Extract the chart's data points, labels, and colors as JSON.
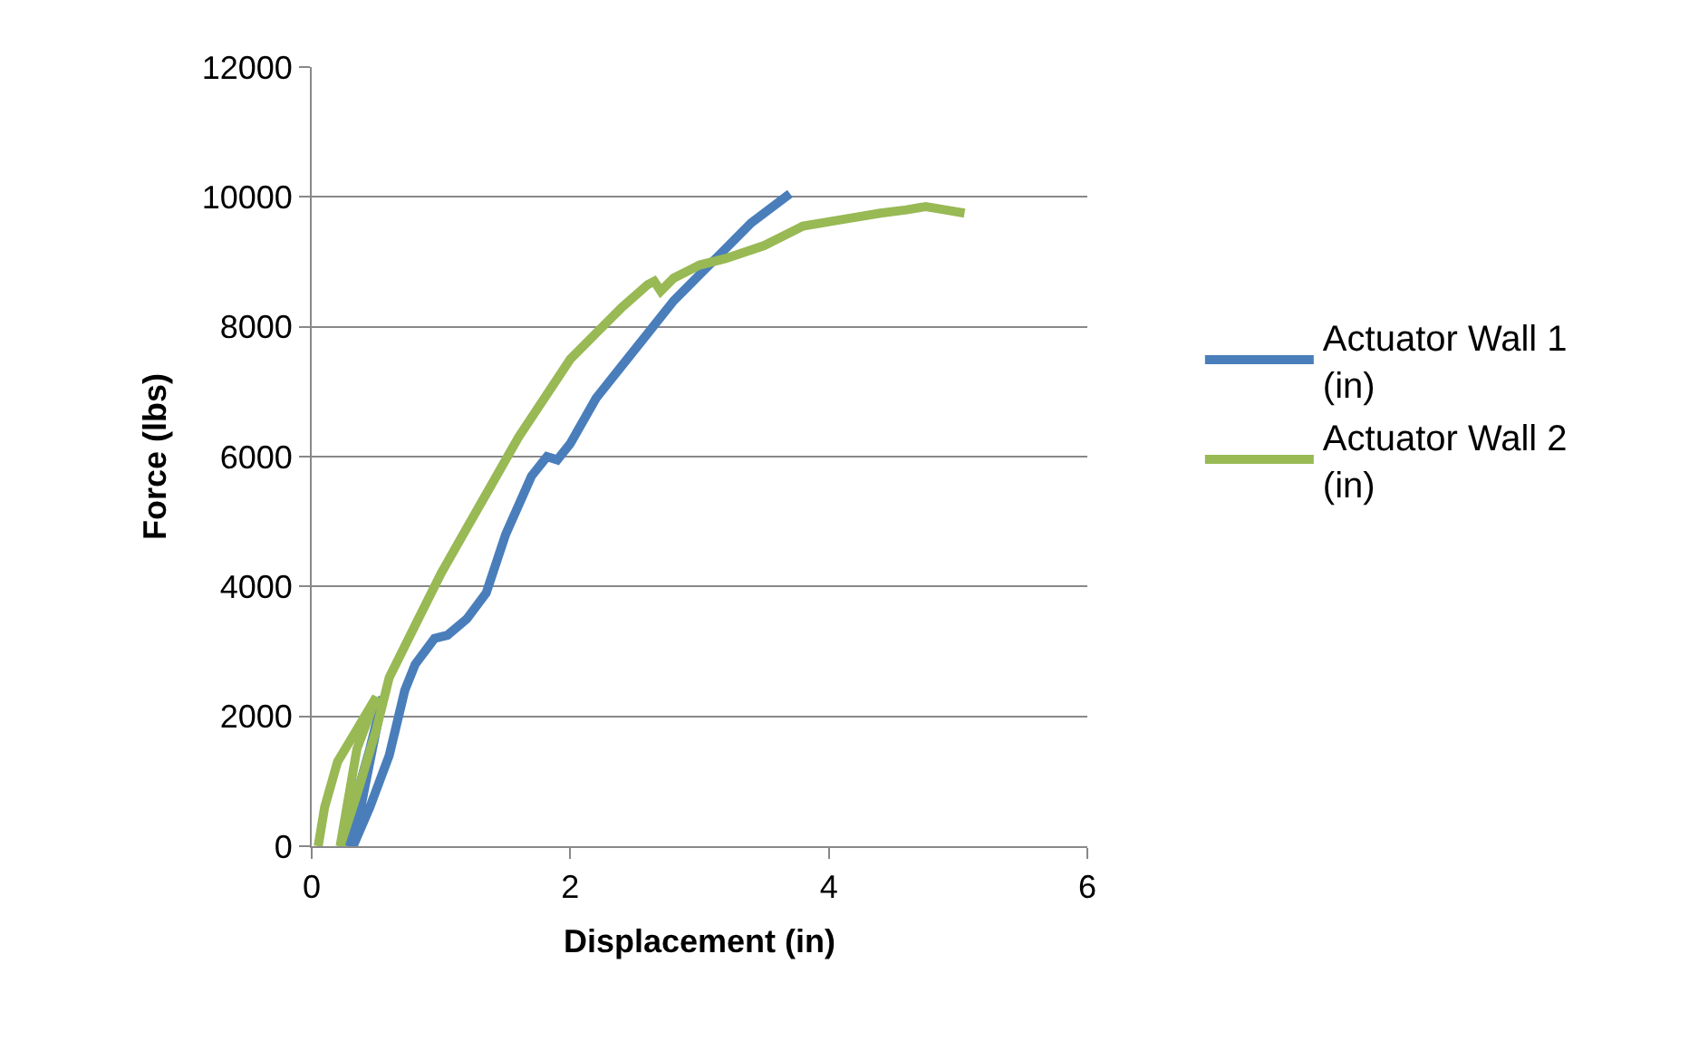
{
  "chart_data": {
    "type": "line",
    "xlabel": "Displacement (in)",
    "ylabel": "Force (lbs)",
    "xlim": [
      0,
      6
    ],
    "xticks": [
      0,
      2,
      4,
      6
    ],
    "ylim": [
      0,
      12000
    ],
    "yticks": [
      0,
      2000,
      4000,
      6000,
      8000,
      10000,
      12000
    ],
    "grid": "y",
    "legend": "right",
    "marker": "none",
    "line_style": "solid",
    "series": [
      {
        "name": "Actuator Wall 1 (in)",
        "color": "#4a7ebb",
        "x": [
          0.28,
          0.35,
          0.45,
          0.55,
          0.45,
          0.32,
          0.45,
          0.6,
          0.72,
          0.8,
          0.95,
          1.05,
          1.2,
          1.35,
          1.5,
          1.7,
          1.82,
          1.9,
          2.0,
          2.2,
          2.4,
          2.6,
          2.8,
          3.0,
          3.2,
          3.4,
          3.7
        ],
        "values": [
          0,
          800,
          1500,
          2300,
          1300,
          0,
          600,
          1400,
          2400,
          2800,
          3200,
          3250,
          3500,
          3900,
          4800,
          5700,
          6000,
          5950,
          6200,
          6900,
          7400,
          7900,
          8400,
          8800,
          9200,
          9600,
          10050
        ]
      },
      {
        "name": "Actuator Wall 2 (in)",
        "color": "#98b954",
        "x": [
          0.05,
          0.1,
          0.2,
          0.35,
          0.5,
          0.35,
          0.22,
          0.35,
          0.5,
          0.6,
          0.8,
          1.0,
          1.2,
          1.4,
          1.6,
          1.8,
          2.0,
          2.2,
          2.4,
          2.6,
          2.65,
          2.7,
          2.8,
          3.0,
          3.2,
          3.5,
          3.8,
          4.1,
          4.4,
          4.6,
          4.75,
          4.9,
          5.05
        ],
        "values": [
          0,
          600,
          1300,
          1800,
          2300,
          1500,
          0,
          800,
          1800,
          2600,
          3400,
          4200,
          4900,
          5600,
          6300,
          6900,
          7500,
          7900,
          8300,
          8650,
          8700,
          8550,
          8750,
          8950,
          9050,
          9250,
          9550,
          9650,
          9750,
          9800,
          9850,
          9800,
          9750
        ]
      }
    ]
  }
}
